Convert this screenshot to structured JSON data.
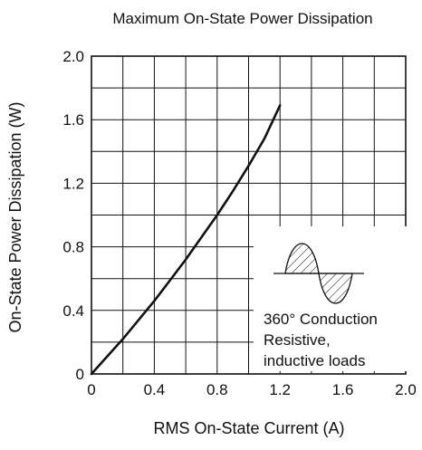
{
  "chart_data": {
    "type": "line",
    "title": "Maximum On-State Power Dissipation",
    "xlabel": "RMS On-State Current  (A)",
    "ylabel": "On-State Power Dissipation  (W)",
    "xlim": [
      0,
      2.0
    ],
    "ylim": [
      0,
      2.0
    ],
    "x_ticks": [
      0,
      0.4,
      0.8,
      1.2,
      1.6,
      2.0
    ],
    "x_tick_labels": [
      "0",
      "0.4",
      "0.8",
      "1.2",
      "1.6",
      "2.0"
    ],
    "y_ticks": [
      0,
      0.4,
      0.8,
      1.2,
      1.6,
      2.0
    ],
    "y_tick_labels": [
      "0",
      "0.4",
      "0.8",
      "1.2",
      "1.6",
      "2.0"
    ],
    "grid": true,
    "grid_step_x": 0.2,
    "grid_step_y": 0.2,
    "series": [
      {
        "color": "#111111",
        "x": [
          0,
          0.1,
          0.2,
          0.3,
          0.4,
          0.5,
          0.6,
          0.7,
          0.8,
          0.9,
          1.0,
          1.1,
          1.2
        ],
        "y": [
          0,
          0.11,
          0.22,
          0.34,
          0.46,
          0.59,
          0.72,
          0.86,
          1.0,
          1.15,
          1.31,
          1.48,
          1.69
        ]
      }
    ],
    "annotation": {
      "lines": [
        "360° Conduction",
        "Resistive,",
        "inductive loads"
      ],
      "icon": "hatched-sine-wave-icon"
    }
  }
}
